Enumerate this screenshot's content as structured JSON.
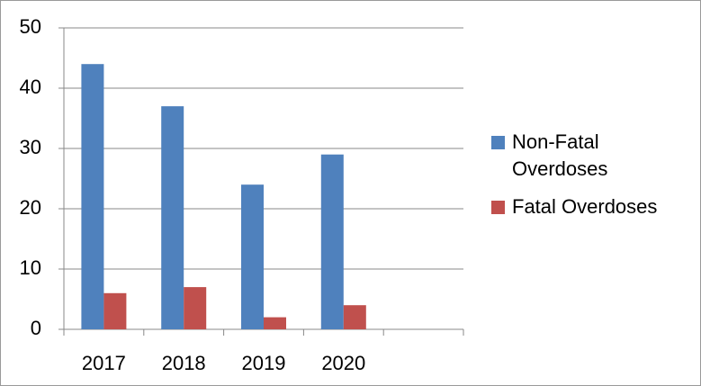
{
  "chart_data": {
    "type": "bar",
    "categories": [
      "2017",
      "2018",
      "2019",
      "2020",
      null
    ],
    "series": [
      {
        "name": "Non-Fatal Overdoses",
        "color": "#4f81bd",
        "values": [
          44,
          37,
          24,
          29,
          null
        ]
      },
      {
        "name": "Fatal Overdoses",
        "color": "#c0504d",
        "values": [
          6,
          7,
          2,
          4,
          null
        ]
      }
    ],
    "ylim": [
      0,
      50
    ],
    "yticks": [
      0,
      10,
      20,
      30,
      40,
      50
    ],
    "grid": true,
    "legend": "right"
  }
}
